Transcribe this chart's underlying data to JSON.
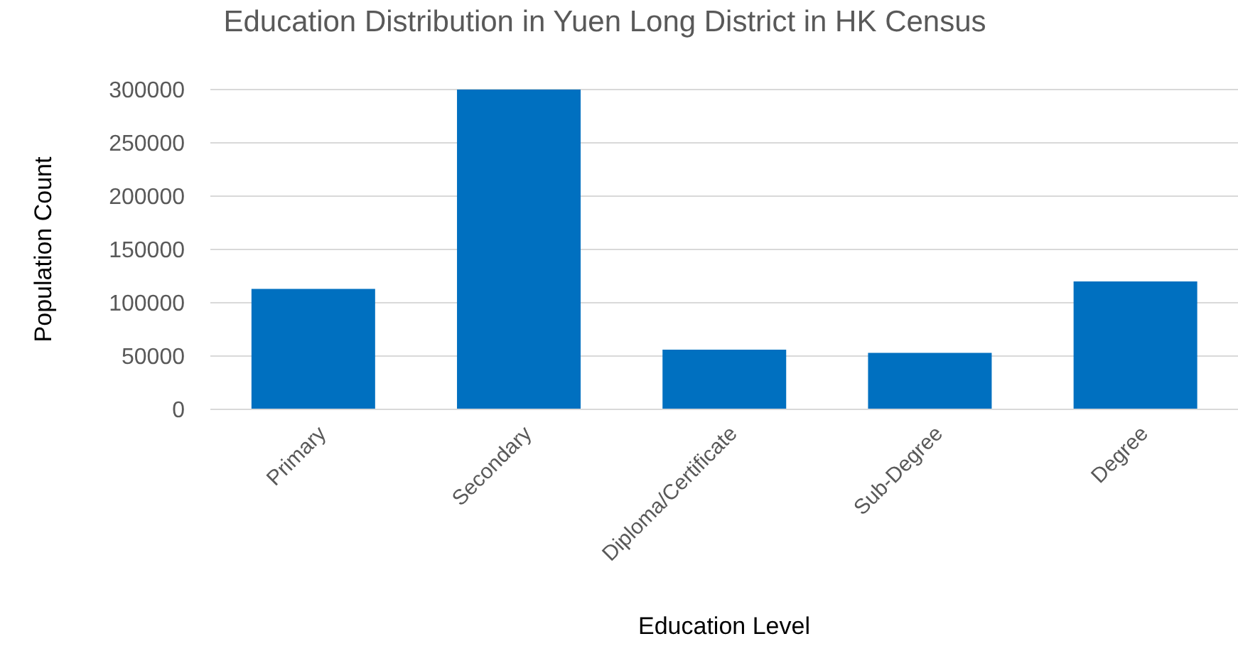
{
  "chart_data": {
    "type": "bar",
    "title": "Education Distribution in Yuen Long District in HK Census",
    "xlabel": "Education Level",
    "ylabel": "Population Count",
    "categories": [
      "Primary",
      "Secondary",
      "Diploma/Certificate",
      "Sub-Degree",
      "Degree"
    ],
    "values": [
      113000,
      300000,
      56000,
      53000,
      120000
    ],
    "color": "#0070c0",
    "ylim": [
      0,
      300000
    ],
    "yticks": [
      0,
      50000,
      100000,
      150000,
      200000,
      250000,
      300000
    ],
    "grid": "y"
  }
}
